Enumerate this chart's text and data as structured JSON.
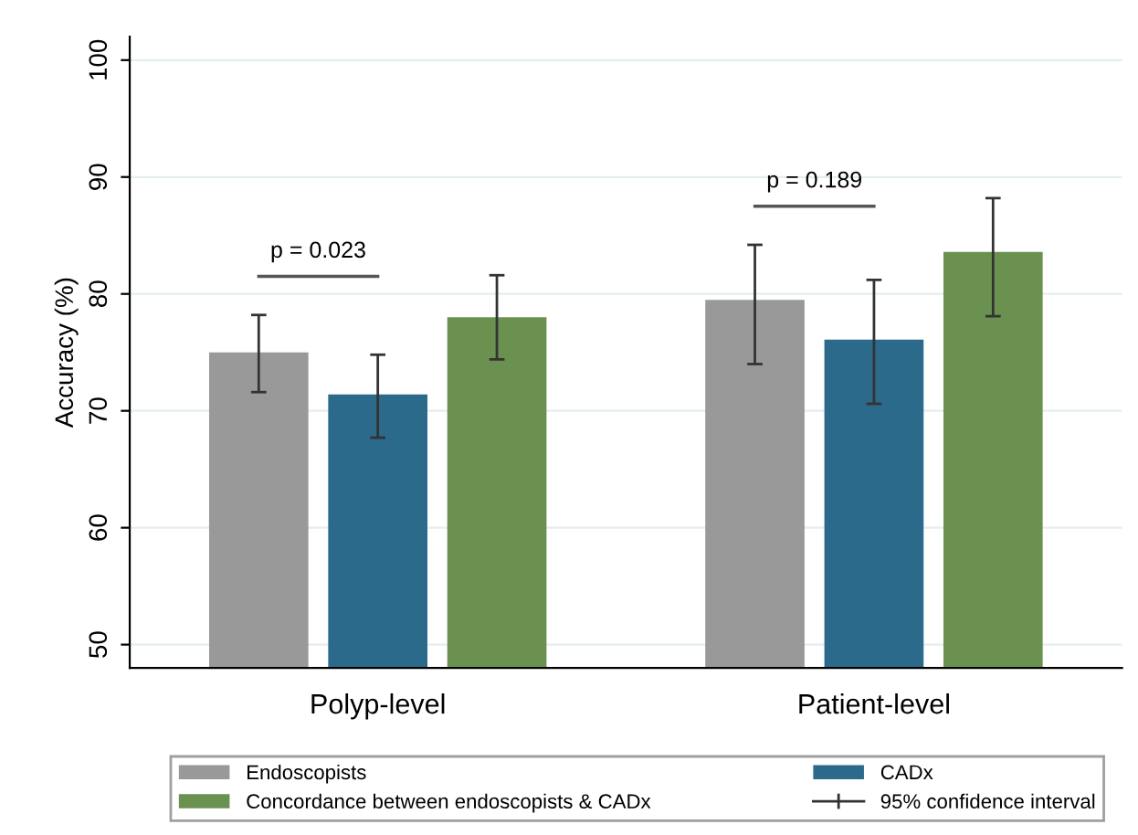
{
  "chart_data": {
    "type": "bar",
    "ylabel": "Accuracy (%)",
    "categories": [
      "Polyp-level",
      "Patient-level"
    ],
    "series": [
      {
        "name": "Endoscopists",
        "color": "#999999",
        "values": [
          75.0,
          79.5
        ],
        "errors": [
          [
            71.6,
            78.2
          ],
          [
            74.0,
            84.2
          ]
        ]
      },
      {
        "name": "CADx",
        "color": "#2c6a8c",
        "values": [
          71.4,
          76.1
        ],
        "errors": [
          [
            67.7,
            74.8
          ],
          [
            70.6,
            81.2
          ]
        ]
      },
      {
        "name": "Concordance between endoscopists & CADx",
        "color": "#6a9150",
        "values": [
          78.0,
          83.6
        ],
        "errors": [
          [
            74.4,
            81.6
          ],
          [
            78.1,
            88.2
          ]
        ]
      }
    ],
    "ylim": [
      48,
      102
    ],
    "yticks": [
      50,
      60,
      70,
      80,
      90,
      100
    ],
    "grid": "y",
    "legend": "bottom",
    "annotations": [
      "p = 0.023",
      "p = 0.189",
      "95% confidence interval"
    ]
  }
}
